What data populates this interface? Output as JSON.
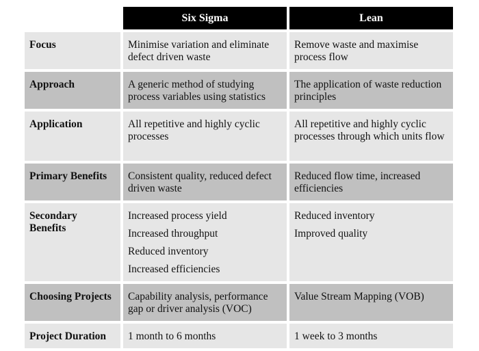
{
  "headers": [
    "",
    "Six Sigma",
    "Lean"
  ],
  "rows": [
    {
      "label": "Focus",
      "six_sigma": [
        "Minimise variation and eliminate defect driven waste"
      ],
      "lean": [
        "Remove waste and maximise process flow"
      ]
    },
    {
      "label": "Approach",
      "six_sigma": [
        "A generic method of studying process variables using statistics"
      ],
      "lean": [
        "The application of waste reduction principles"
      ]
    },
    {
      "label": "Application",
      "six_sigma": [
        "All repetitive and highly cyclic processes"
      ],
      "lean": [
        "All repetitive and highly cyclic processes through which units flow"
      ]
    },
    {
      "label": "Primary Benefits",
      "six_sigma": [
        "Consistent quality, reduced defect driven waste"
      ],
      "lean": [
        "Reduced flow time, increased efficiencies"
      ]
    },
    {
      "label": "Secondary Benefits",
      "six_sigma": [
        "Increased process yield",
        "Increased throughput",
        "Reduced inventory",
        "Increased efficiencies"
      ],
      "lean": [
        "Reduced inventory",
        "Improved quality"
      ]
    },
    {
      "label": "Choosing Projects",
      "six_sigma": [
        "Capability analysis, performance gap or driver analysis (VOC)"
      ],
      "lean": [
        "Value Stream Mapping (VOB)"
      ]
    },
    {
      "label": "Project Duration",
      "six_sigma": [
        "1 month to 6 months"
      ],
      "lean": [
        "1 week to 3 months"
      ]
    }
  ],
  "colors": {
    "header": "#000000",
    "row_light": "#e6e6e6",
    "row_dark": "#c0c0c0"
  }
}
